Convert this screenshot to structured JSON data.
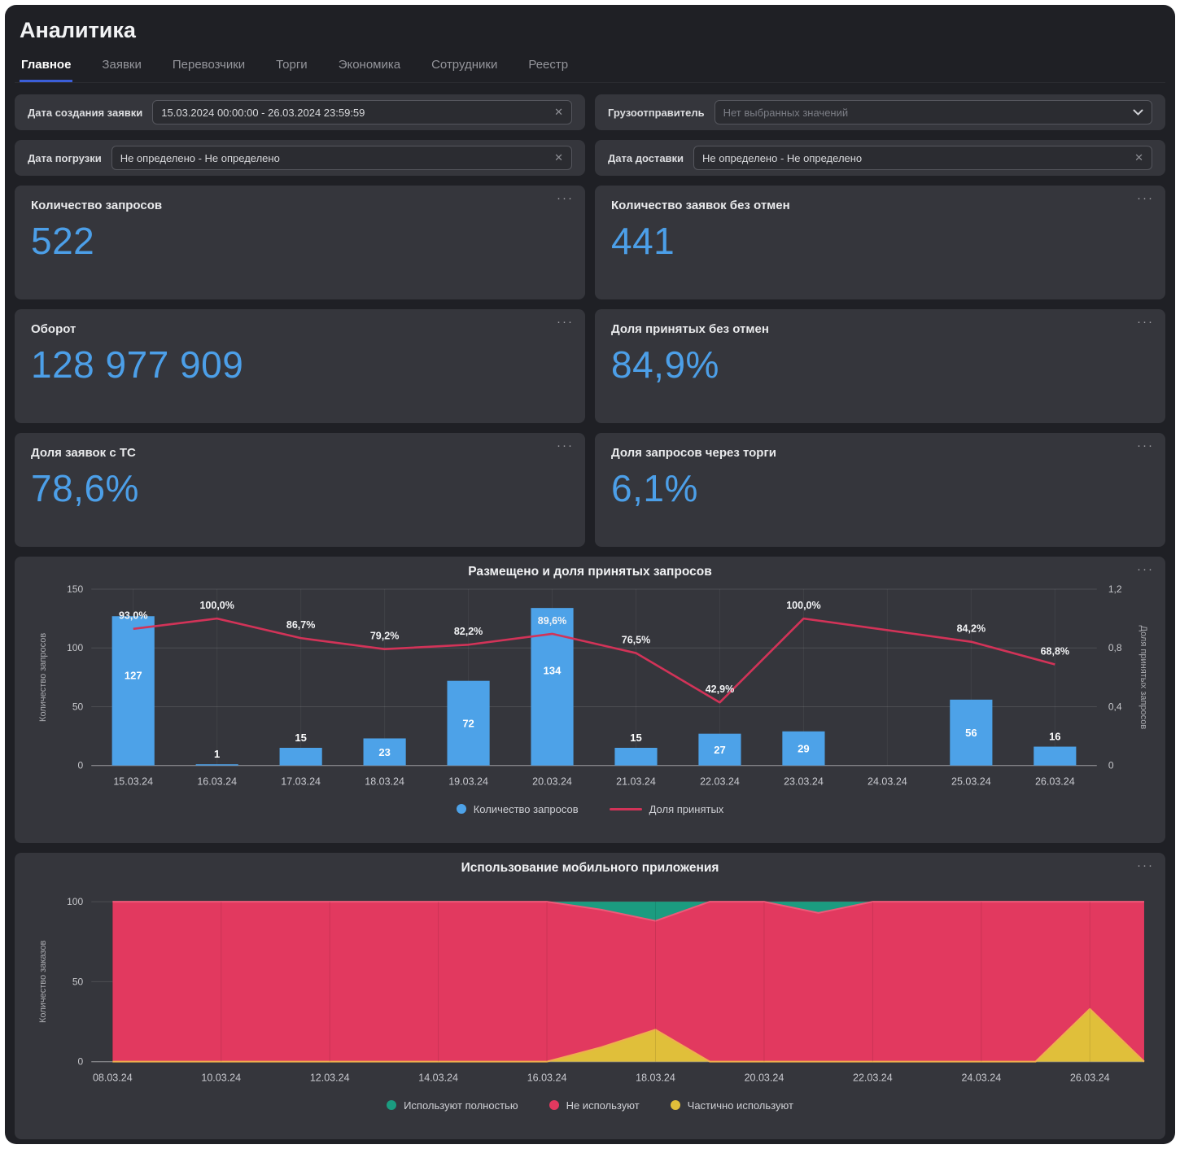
{
  "page_title": "Аналитика",
  "ui": {
    "menu_glyph": "···",
    "clear_glyph": "✕"
  },
  "tabs": {
    "items": [
      {
        "label": "Главное",
        "active": true
      },
      {
        "label": "Заявки",
        "active": false
      },
      {
        "label": "Перевозчики",
        "active": false
      },
      {
        "label": "Торги",
        "active": false
      },
      {
        "label": "Экономика",
        "active": false
      },
      {
        "label": "Сотрудники",
        "active": false
      },
      {
        "label": "Реестр",
        "active": false
      }
    ]
  },
  "filters": {
    "created": {
      "label": "Дата создания заявки",
      "value": "15.03.2024 00:00:00 - 26.03.2024 23:59:59"
    },
    "shipper": {
      "label": "Грузоотправитель",
      "placeholder": "Нет выбранных значений"
    },
    "loading": {
      "label": "Дата погрузки",
      "value": "Не определено - Не определено"
    },
    "delivery": {
      "label": "Дата доставки",
      "value": "Не определено - Не определено"
    }
  },
  "kpi": {
    "cards": [
      {
        "label": "Количество запросов",
        "value": "522"
      },
      {
        "label": "Количество заявок без отмен",
        "value": "441"
      },
      {
        "label": "Оборот",
        "value": "128 977 909"
      },
      {
        "label": "Доля принятых без отмен",
        "value": "84,9%"
      },
      {
        "label": "Доля заявок с ТС",
        "value": "78,6%"
      },
      {
        "label": "Доля запросов через торги",
        "value": "6,1%"
      }
    ]
  },
  "colors": {
    "accent_blue": "#4c9fe8",
    "bar_blue": "#4da2e8",
    "line_red": "#d23358",
    "area_red": "#e2395f",
    "area_red_edge": "#ef5878",
    "area_green": "#1b9c80",
    "area_yellow": "#e0bf3a",
    "area_yellow_edge": "#efae4e",
    "tab_underline": "#3b5ed8",
    "panel_bg": "#35363c"
  },
  "chart_data": [
    {
      "type": "bar",
      "subtype": "combo-bar-line",
      "title": "Размещено и доля принятых запросов",
      "categories": [
        "15.03.24",
        "16.03.24",
        "17.03.24",
        "18.03.24",
        "19.03.24",
        "20.03.24",
        "21.03.24",
        "22.03.24",
        "23.03.24",
        "24.03.24",
        "25.03.24",
        "26.03.24"
      ],
      "series": [
        {
          "name": "Количество запросов",
          "type": "bar",
          "marker": "dot",
          "color": "#4da2e8",
          "values": [
            127,
            1,
            15,
            23,
            72,
            134,
            15,
            27,
            29,
            null,
            56,
            16
          ]
        },
        {
          "name": "Доля принятых",
          "type": "line",
          "marker": "line",
          "color": "#d23358",
          "values_pct": [
            93.0,
            100.0,
            86.7,
            79.2,
            82.2,
            89.6,
            76.5,
            42.9,
            100.0,
            null,
            84.2,
            68.8
          ],
          "point_labels": [
            "93,0%",
            "100,0%",
            "86,7%",
            "79,2%",
            "82,2%",
            "89,6%",
            "76,5%",
            "42,9%",
            "100,0%",
            null,
            "84,2%",
            "68,8%"
          ]
        }
      ],
      "ylabel_left": "Количество запросов",
      "ylabel_right": "Доля принятых запросов",
      "ylim_left": [
        0,
        150
      ],
      "yticks_left_vals": [
        0,
        50,
        100,
        150
      ],
      "yticks_left": [
        "0",
        "50",
        "100",
        "150"
      ],
      "ylim_right": [
        0,
        1.2
      ],
      "yticks_right_vals": [
        0,
        0.4,
        0.8,
        1.2
      ],
      "yticks_right": [
        "0",
        "0,4",
        "0,8",
        "1,2"
      ],
      "grid": true,
      "legend_position": "bottom"
    },
    {
      "type": "area",
      "subtype": "stacked-area-100",
      "title": "Использование мобильного приложения",
      "x_ticks": [
        "08.03.24",
        "10.03.24",
        "12.03.24",
        "14.03.24",
        "16.03.24",
        "18.03.24",
        "20.03.24",
        "22.03.24",
        "24.03.24",
        "26.03.24"
      ],
      "n_points": 20,
      "ylabel": "Количество заказов",
      "ylim": [
        0,
        100
      ],
      "yticks_vals": [
        0,
        50,
        100
      ],
      "yticks": [
        "0",
        "50",
        "100"
      ],
      "series": [
        {
          "name": "Используют полностью",
          "color": "#1b9c80",
          "edge": null,
          "values": [
            0,
            0,
            0,
            0,
            0,
            0,
            0,
            0,
            0,
            5,
            12,
            0,
            0,
            7,
            0,
            0,
            0,
            0,
            0,
            0
          ]
        },
        {
          "name": "Не используют",
          "color": "#e2395f",
          "edge": "#ef5878",
          "values": [
            100,
            100,
            100,
            100,
            100,
            100,
            100,
            100,
            100,
            86,
            68,
            100,
            100,
            93,
            100,
            100,
            100,
            100,
            67,
            100
          ]
        },
        {
          "name": "Частично используют",
          "color": "#e0bf3a",
          "edge": "#efae4e",
          "values": [
            0,
            0,
            0,
            0,
            0,
            0,
            0,
            0,
            0,
            9,
            20,
            0,
            0,
            0,
            0,
            0,
            0,
            0,
            33,
            0
          ]
        }
      ],
      "stack_order_bottom_to_top": [
        "Частично используют",
        "Не используют",
        "Используют полностью"
      ],
      "grid": true,
      "legend_position": "bottom"
    }
  ]
}
